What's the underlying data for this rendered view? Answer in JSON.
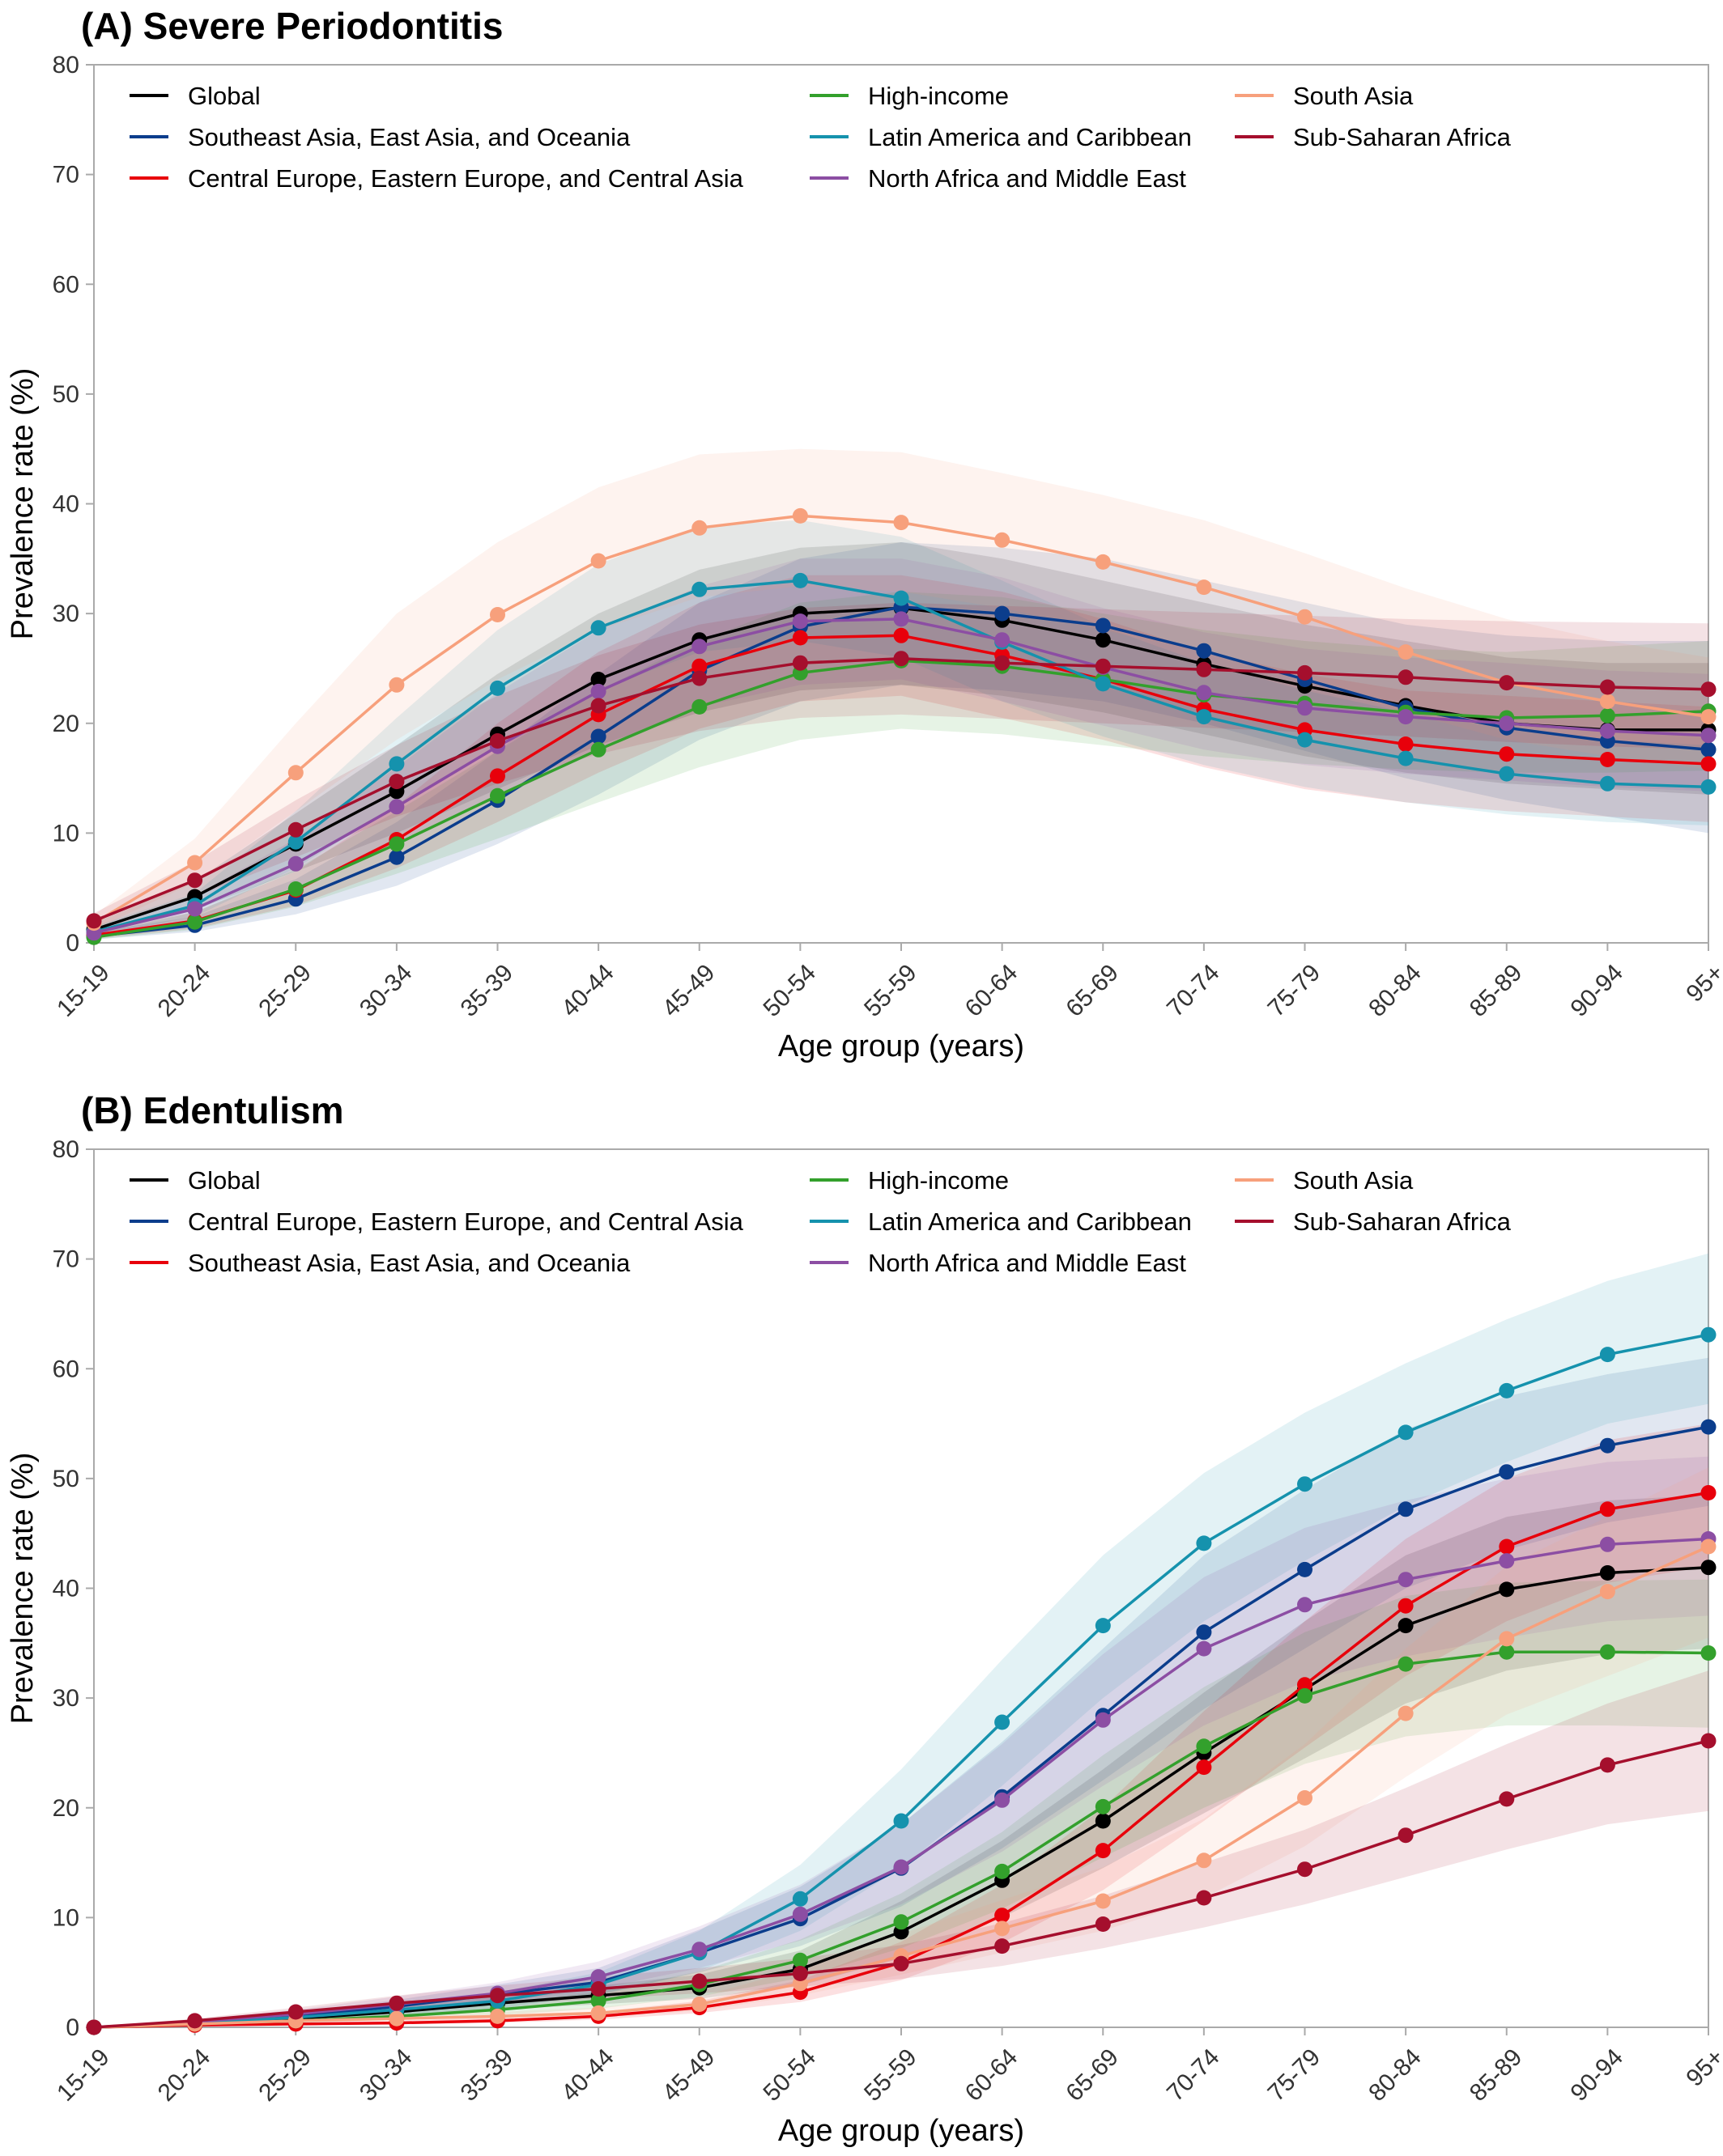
{
  "chart_data": [
    {
      "type": "line",
      "title": "(A) Severe Periodontitis",
      "xlabel": "Age group (years)",
      "ylabel": "Prevalence rate (%)",
      "ylim": [
        0,
        80
      ],
      "yticks": [
        "0",
        "10",
        "20",
        "30",
        "40",
        "50",
        "60",
        "70",
        "80"
      ],
      "grid": false,
      "legend_position": "top",
      "categories": [
        "15-19",
        "20-24",
        "25-29",
        "30-34",
        "35-39",
        "40-44",
        "45-49",
        "50-54",
        "55-59",
        "60-64",
        "65-69",
        "70-74",
        "75-79",
        "80-84",
        "85-89",
        "90-94",
        "95+"
      ],
      "series": [
        {
          "name": "Global",
          "color": "#000000",
          "values": [
            1.2,
            4.2,
            9.0,
            13.8,
            19.0,
            24.0,
            27.6,
            30.0,
            30.5,
            29.4,
            27.6,
            25.4,
            23.4,
            21.6,
            20.0,
            19.4,
            19.4
          ],
          "lower": [
            0.8,
            3.0,
            6.5,
            10.0,
            14.0,
            18.0,
            21.0,
            23.0,
            23.5,
            22.5,
            21.0,
            19.0,
            17.0,
            15.5,
            14.5,
            14.0,
            13.5
          ],
          "upper": [
            1.8,
            5.6,
            11.8,
            18.0,
            24.5,
            30.0,
            34.0,
            36.0,
            36.5,
            35.0,
            33.0,
            31.0,
            29.0,
            27.5,
            26.0,
            25.5,
            25.5
          ]
        },
        {
          "name": "Southeast Asia, East Asia, and Oceania",
          "color": "#0b3d8c",
          "values": [
            0.6,
            1.6,
            4.0,
            7.8,
            13.0,
            18.8,
            24.8,
            28.8,
            30.6,
            30.0,
            28.9,
            26.6,
            24.0,
            21.4,
            19.6,
            18.4,
            17.6
          ],
          "lower": [
            0.3,
            1.0,
            2.6,
            5.2,
            9.0,
            13.5,
            18.5,
            22.0,
            23.5,
            23.0,
            22.0,
            20.0,
            17.5,
            15.0,
            13.0,
            11.5,
            10.0
          ],
          "upper": [
            1.0,
            2.4,
            5.8,
            11.0,
            17.5,
            24.5,
            31.0,
            35.0,
            36.5,
            36.0,
            35.0,
            33.0,
            31.0,
            29.0,
            28.0,
            27.5,
            27.5
          ]
        },
        {
          "name": "Central Europe, Eastern Europe, and Central Asia",
          "color": "#e8000b",
          "values": [
            0.7,
            2.0,
            4.8,
            9.4,
            15.2,
            20.8,
            25.2,
            27.8,
            28.0,
            26.2,
            24.0,
            21.3,
            19.4,
            18.1,
            17.2,
            16.7,
            16.3
          ],
          "lower": [
            0.4,
            1.3,
            3.4,
            6.8,
            11.0,
            15.5,
            19.5,
            22.0,
            22.5,
            20.5,
            18.5,
            16.0,
            14.0,
            12.8,
            12.0,
            11.5,
            11.0
          ],
          "upper": [
            1.1,
            2.8,
            6.5,
            12.5,
            20.0,
            26.5,
            31.0,
            33.5,
            33.5,
            32.0,
            29.5,
            26.5,
            24.5,
            23.0,
            22.5,
            22.0,
            21.5
          ]
        },
        {
          "name": "High-income",
          "color": "#33a02c",
          "values": [
            0.5,
            1.9,
            4.9,
            9.0,
            13.4,
            17.6,
            21.5,
            24.6,
            25.7,
            25.2,
            24.0,
            22.6,
            21.8,
            21.0,
            20.5,
            20.7,
            21.1
          ],
          "lower": [
            0.3,
            1.2,
            3.3,
            6.3,
            9.5,
            12.8,
            16.0,
            18.5,
            19.5,
            19.0,
            18.0,
            17.0,
            16.3,
            15.8,
            15.5,
            15.5,
            15.7
          ],
          "upper": [
            0.8,
            2.8,
            6.7,
            12.0,
            17.5,
            23.0,
            27.5,
            31.0,
            32.0,
            31.5,
            30.0,
            28.5,
            27.5,
            26.8,
            26.5,
            27.0,
            27.5
          ]
        },
        {
          "name": "Latin America and Caribbean",
          "color": "#1592ad",
          "values": [
            1.0,
            3.4,
            9.2,
            16.3,
            23.2,
            28.7,
            32.2,
            33.0,
            31.4,
            27.4,
            23.6,
            20.6,
            18.5,
            16.8,
            15.4,
            14.5,
            14.2
          ],
          "lower": [
            0.6,
            2.4,
            6.8,
            12.5,
            18.0,
            23.0,
            26.5,
            27.5,
            26.0,
            22.0,
            18.8,
            16.2,
            14.2,
            12.8,
            11.7,
            11.0,
            10.7
          ],
          "upper": [
            1.5,
            4.5,
            12.0,
            20.5,
            28.5,
            34.5,
            38.0,
            38.5,
            37.0,
            33.0,
            28.8,
            25.5,
            23.0,
            21.0,
            19.5,
            18.5,
            18.0
          ]
        },
        {
          "name": "North Africa and Middle East",
          "color": "#8c4ea3",
          "values": [
            0.9,
            3.1,
            7.2,
            12.4,
            17.9,
            22.9,
            27.0,
            29.3,
            29.5,
            27.6,
            25.1,
            22.8,
            21.4,
            20.6,
            20.0,
            19.3,
            18.9
          ],
          "lower": [
            0.6,
            2.1,
            5.1,
            9.0,
            13.2,
            17.5,
            21.5,
            23.5,
            24.0,
            22.0,
            19.8,
            17.6,
            16.2,
            15.4,
            14.8,
            14.2,
            13.8
          ],
          "upper": [
            1.3,
            4.3,
            9.5,
            16.0,
            22.8,
            28.5,
            32.5,
            35.0,
            35.0,
            33.3,
            30.5,
            28.3,
            26.8,
            26.0,
            25.5,
            24.8,
            24.5
          ]
        },
        {
          "name": "South Asia",
          "color": "#f7a07c",
          "values": [
            1.8,
            7.3,
            15.5,
            23.5,
            29.9,
            34.8,
            37.8,
            38.9,
            38.3,
            36.7,
            34.7,
            32.4,
            29.7,
            26.5,
            23.7,
            22.0,
            20.6
          ],
          "lower": [
            1.2,
            5.5,
            12.0,
            18.5,
            24.0,
            28.5,
            31.5,
            32.5,
            32.0,
            30.5,
            28.5,
            26.5,
            24.0,
            21.0,
            18.5,
            17.0,
            15.8
          ],
          "upper": [
            2.5,
            9.5,
            20.0,
            30.0,
            36.5,
            41.5,
            44.5,
            45.0,
            44.7,
            42.8,
            40.8,
            38.5,
            35.5,
            32.3,
            29.5,
            27.5,
            26.0
          ]
        },
        {
          "name": "Sub-Saharan Africa",
          "color": "#a50f2d",
          "values": [
            2.0,
            5.7,
            10.3,
            14.7,
            18.4,
            21.6,
            24.1,
            25.5,
            25.9,
            25.5,
            25.2,
            24.9,
            24.6,
            24.2,
            23.7,
            23.3,
            23.1
          ],
          "lower": [
            1.4,
            4.2,
            7.8,
            11.5,
            14.5,
            17.2,
            19.3,
            20.5,
            20.8,
            20.4,
            20.0,
            19.6,
            19.2,
            18.8,
            18.3,
            17.9,
            17.6
          ],
          "upper": [
            2.7,
            7.4,
            13.0,
            18.0,
            22.5,
            26.2,
            29.0,
            30.5,
            31.0,
            30.7,
            30.4,
            30.1,
            29.8,
            29.5,
            29.3,
            29.2,
            29.1
          ]
        }
      ]
    },
    {
      "type": "line",
      "title": "(B) Edentulism",
      "xlabel": "Age group (years)",
      "ylabel": "Prevalence rate (%)",
      "ylim": [
        0,
        80
      ],
      "yticks": [
        "0",
        "10",
        "20",
        "30",
        "40",
        "50",
        "60",
        "70",
        "80"
      ],
      "grid": false,
      "legend_position": "top",
      "categories": [
        "15-19",
        "20-24",
        "25-29",
        "30-34",
        "35-39",
        "40-44",
        "45-49",
        "50-54",
        "55-59",
        "60-64",
        "65-69",
        "70-74",
        "75-79",
        "80-84",
        "85-89",
        "90-94",
        "95+"
      ],
      "series": [
        {
          "name": "Global",
          "color": "#000000",
          "values": [
            0.0,
            0.4,
            0.8,
            1.4,
            2.2,
            2.9,
            3.6,
            5.3,
            8.7,
            13.4,
            18.8,
            25.0,
            30.8,
            36.6,
            39.9,
            41.4,
            41.9
          ],
          "lower": [
            0.0,
            0.3,
            0.6,
            1.0,
            1.6,
            2.1,
            2.6,
            3.8,
            6.3,
            10.0,
            14.5,
            19.5,
            24.5,
            29.5,
            32.5,
            34.0,
            34.5
          ],
          "upper": [
            0.0,
            0.5,
            1.0,
            1.8,
            2.9,
            3.8,
            4.8,
            7.0,
            11.5,
            17.0,
            23.5,
            30.5,
            37.0,
            43.0,
            46.5,
            48.0,
            48.5
          ]
        },
        {
          "name": "Central Europe, Eastern Europe, and Central Asia",
          "color": "#0b3d8c",
          "values": [
            0.0,
            0.4,
            1.0,
            1.9,
            3.0,
            4.1,
            6.8,
            9.9,
            14.5,
            21.0,
            28.4,
            36.0,
            41.7,
            47.2,
            50.6,
            53.0,
            54.7
          ],
          "lower": [
            0.0,
            0.3,
            0.7,
            1.4,
            2.2,
            3.0,
            5.0,
            7.4,
            11.0,
            16.3,
            22.5,
            29.0,
            34.5,
            40.0,
            43.5,
            46.0,
            47.5
          ],
          "upper": [
            0.0,
            0.5,
            1.3,
            2.5,
            3.9,
            5.4,
            8.9,
            12.8,
            18.5,
            26.0,
            34.5,
            43.0,
            49.0,
            54.5,
            57.5,
            59.5,
            61.0
          ]
        },
        {
          "name": "Southeast Asia, East Asia, and Oceania",
          "color": "#e8000b",
          "values": [
            0.0,
            0.2,
            0.3,
            0.4,
            0.6,
            1.0,
            1.8,
            3.2,
            5.9,
            10.2,
            16.1,
            23.7,
            31.2,
            38.4,
            43.8,
            47.2,
            48.7
          ],
          "lower": [
            0.0,
            0.1,
            0.2,
            0.3,
            0.4,
            0.7,
            1.3,
            2.3,
            4.3,
            7.7,
            12.5,
            18.8,
            25.5,
            32.0,
            37.0,
            40.5,
            42.0
          ],
          "upper": [
            0.0,
            0.3,
            0.4,
            0.6,
            0.9,
            1.4,
            2.4,
            4.3,
            7.8,
            13.0,
            20.0,
            28.8,
            37.0,
            44.5,
            50.0,
            53.5,
            55.0
          ]
        },
        {
          "name": "High-income",
          "color": "#33a02c",
          "values": [
            0.0,
            0.3,
            0.6,
            1.0,
            1.6,
            2.4,
            3.9,
            6.1,
            9.6,
            14.2,
            20.1,
            25.6,
            30.2,
            33.1,
            34.2,
            34.2,
            34.1
          ],
          "lower": [
            0.0,
            0.2,
            0.4,
            0.7,
            1.1,
            1.7,
            2.8,
            4.5,
            7.2,
            10.8,
            15.5,
            20.0,
            24.0,
            26.5,
            27.5,
            27.5,
            27.3
          ],
          "upper": [
            0.0,
            0.4,
            0.8,
            1.4,
            2.2,
            3.2,
            5.1,
            8.0,
            12.2,
            17.8,
            24.8,
            31.0,
            36.0,
            39.3,
            40.5,
            40.7,
            40.8
          ]
        },
        {
          "name": "Latin America and Caribbean",
          "color": "#1592ad",
          "values": [
            0.0,
            0.4,
            0.9,
            1.6,
            2.4,
            3.9,
            6.8,
            11.7,
            18.8,
            27.8,
            36.6,
            44.1,
            49.5,
            54.2,
            58.0,
            61.3,
            63.1
          ],
          "lower": [
            0.0,
            0.3,
            0.6,
            1.1,
            1.7,
            2.9,
            5.1,
            8.8,
            14.5,
            22.0,
            30.0,
            37.0,
            42.5,
            47.5,
            51.5,
            55.0,
            56.8
          ],
          "upper": [
            0.0,
            0.6,
            1.2,
            2.2,
            3.2,
            5.0,
            8.8,
            14.8,
            23.5,
            33.5,
            43.0,
            50.5,
            56.0,
            60.5,
            64.5,
            68.0,
            70.5
          ]
        },
        {
          "name": "North Africa and Middle East",
          "color": "#8c4ea3",
          "values": [
            0.0,
            0.5,
            1.2,
            2.1,
            3.1,
            4.6,
            7.1,
            10.3,
            14.6,
            20.7,
            28.0,
            34.5,
            38.5,
            40.8,
            42.5,
            44.0,
            44.5
          ],
          "lower": [
            0.0,
            0.4,
            0.9,
            1.6,
            2.3,
            3.5,
            5.4,
            7.9,
            11.2,
            16.0,
            22.0,
            27.5,
            31.5,
            33.8,
            35.5,
            37.0,
            37.5
          ],
          "upper": [
            0.0,
            0.7,
            1.6,
            2.8,
            4.1,
            6.0,
            9.2,
            13.0,
            18.5,
            25.8,
            34.0,
            41.0,
            45.5,
            48.0,
            50.0,
            51.5,
            52.0
          ]
        },
        {
          "name": "South Asia",
          "color": "#f7a07c",
          "values": [
            0.0,
            0.3,
            0.6,
            0.8,
            1.0,
            1.3,
            2.1,
            4.0,
            6.5,
            9.0,
            11.5,
            15.2,
            20.9,
            28.6,
            35.4,
            39.7,
            43.8
          ],
          "lower": [
            0.0,
            0.2,
            0.4,
            0.6,
            0.7,
            0.9,
            1.5,
            2.9,
            4.8,
            6.8,
            8.8,
            11.8,
            16.5,
            22.8,
            28.5,
            32.0,
            35.5
          ],
          "upper": [
            0.0,
            0.4,
            0.8,
            1.1,
            1.4,
            1.8,
            2.8,
            5.3,
            8.5,
            11.6,
            14.6,
            19.0,
            25.8,
            34.5,
            42.0,
            46.5,
            51.0
          ]
        },
        {
          "name": "Sub-Saharan Africa",
          "color": "#a50f2d",
          "values": [
            0.0,
            0.6,
            1.4,
            2.2,
            2.9,
            3.5,
            4.2,
            4.9,
            5.8,
            7.4,
            9.4,
            11.8,
            14.4,
            17.5,
            20.8,
            23.9,
            26.1
          ],
          "lower": [
            0.0,
            0.4,
            1.0,
            1.6,
            2.1,
            2.6,
            3.1,
            3.7,
            4.4,
            5.6,
            7.2,
            9.1,
            11.2,
            13.7,
            16.2,
            18.5,
            19.7
          ],
          "upper": [
            0.0,
            0.8,
            1.8,
            2.9,
            3.8,
            4.6,
            5.4,
            6.3,
            7.5,
            9.5,
            12.0,
            15.0,
            18.0,
            21.8,
            25.8,
            29.5,
            32.5
          ]
        }
      ]
    }
  ]
}
